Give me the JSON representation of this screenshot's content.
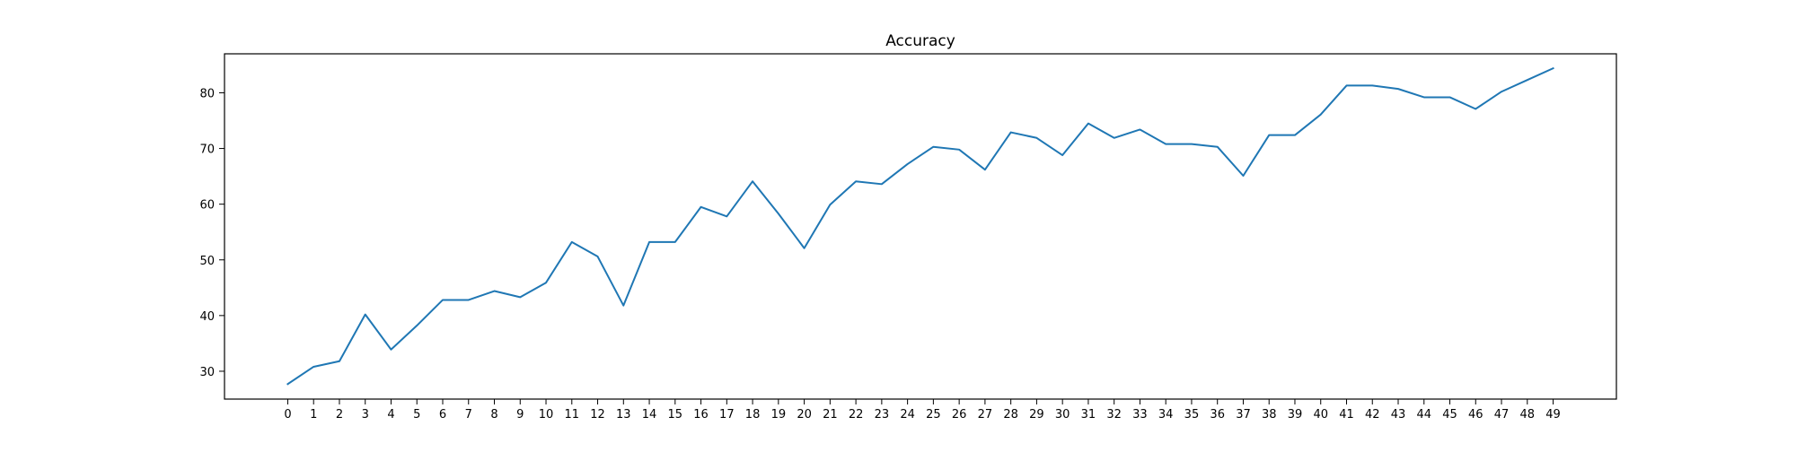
{
  "chart_data": {
    "type": "line",
    "title": "Accuracy",
    "xlabel": "",
    "ylabel": "",
    "x": [
      0,
      1,
      2,
      3,
      4,
      5,
      6,
      7,
      8,
      9,
      10,
      11,
      12,
      13,
      14,
      15,
      16,
      17,
      18,
      19,
      20,
      21,
      22,
      23,
      24,
      25,
      26,
      27,
      28,
      29,
      30,
      31,
      32,
      33,
      34,
      35,
      36,
      37,
      38,
      39,
      40,
      41,
      42,
      43,
      44,
      45,
      46,
      47,
      48,
      49
    ],
    "xticks": [
      "0",
      "1",
      "2",
      "3",
      "4",
      "5",
      "6",
      "7",
      "8",
      "9",
      "10",
      "11",
      "12",
      "13",
      "14",
      "15",
      "16",
      "17",
      "18",
      "19",
      "20",
      "21",
      "22",
      "23",
      "24",
      "25",
      "26",
      "27",
      "28",
      "29",
      "30",
      "31",
      "32",
      "33",
      "34",
      "35",
      "36",
      "37",
      "38",
      "39",
      "40",
      "41",
      "42",
      "43",
      "44",
      "45",
      "46",
      "47",
      "48",
      "49"
    ],
    "yticks": [
      30,
      40,
      50,
      60,
      70,
      80
    ],
    "ytick_labels": [
      "30",
      "40",
      "50",
      "60",
      "70",
      "80"
    ],
    "xlim": [
      -2.45,
      51.45
    ],
    "ylim": [
      25.0,
      87.0
    ],
    "grid": false,
    "legend": "none",
    "series": [
      {
        "color": "#1f77b4",
        "values": [
          27.7,
          30.8,
          31.8,
          40.2,
          33.9,
          38.2,
          42.8,
          42.8,
          44.4,
          43.3,
          45.9,
          53.2,
          50.6,
          41.8,
          53.2,
          53.2,
          59.5,
          57.8,
          64.1,
          58.3,
          52.1,
          59.9,
          64.1,
          63.6,
          67.2,
          70.3,
          69.8,
          66.2,
          72.9,
          71.9,
          68.8,
          74.5,
          71.9,
          73.4,
          70.8,
          70.8,
          70.3,
          65.1,
          72.4,
          72.4,
          76.1,
          81.3,
          81.3,
          80.7,
          79.2,
          79.2,
          77.1,
          80.2,
          82.3,
          84.4
        ]
      }
    ]
  }
}
